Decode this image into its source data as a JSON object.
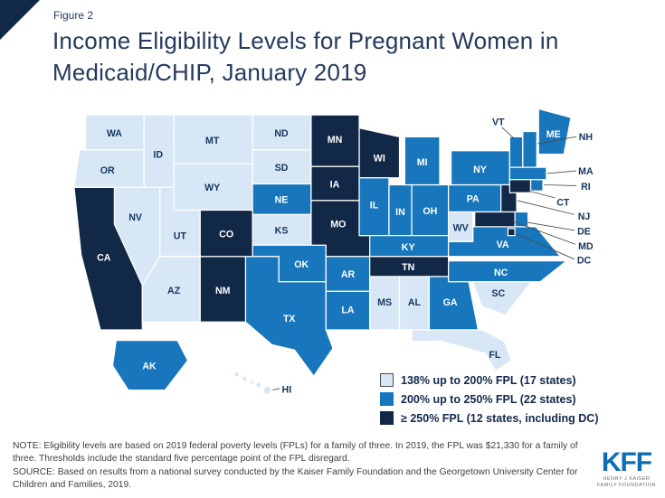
{
  "figure_label": "Figure 2",
  "title": {
    "line1": "Income Eligibility Levels for Pregnant Women in",
    "line2": "Medicaid/CHIP, January 2019"
  },
  "colors": {
    "light": "#d7e7f6",
    "medium": "#1876bc",
    "dark": "#122847",
    "label_dark": "#16355e",
    "label_light": "#ffffff",
    "leader_line": "#4a4a4a",
    "kff_blue": "#0f6db5"
  },
  "legend": {
    "items": [
      {
        "category": "light",
        "label": "138% up to 200% FPL (17 states)"
      },
      {
        "category": "medium",
        "label": "200% up to 250% FPL (22 states)"
      },
      {
        "category": "dark",
        "label": "≥ 250% FPL (12 states, including DC)"
      }
    ]
  },
  "map_data": {
    "type": "choropleth",
    "unit": "US states",
    "categories": {
      "light": {
        "label": "138% up to 200% FPL",
        "states": [
          "WA",
          "OR",
          "ID",
          "MT",
          "WY",
          "ND",
          "SD",
          "KS",
          "NV",
          "UT",
          "AZ",
          "MS",
          "AL",
          "SC",
          "FL",
          "WV",
          "HI"
        ]
      },
      "medium": {
        "label": "200% up to 250% FPL",
        "states": [
          "AK",
          "NE",
          "OK",
          "TX",
          "AR",
          "LA",
          "IL",
          "IN",
          "OH",
          "MI",
          "KY",
          "GA",
          "PA",
          "NY",
          "VA",
          "NC",
          "DE",
          "VT",
          "NH",
          "MA",
          "RI",
          "ME"
        ]
      },
      "dark": {
        "label": "≥ 250% FPL",
        "states": [
          "CA",
          "CO",
          "NM",
          "MN",
          "IA",
          "WI",
          "MO",
          "TN",
          "CT",
          "NJ",
          "MD",
          "DC"
        ]
      }
    }
  },
  "notes": {
    "note": "NOTE: Eligibility levels are based on 2019 federal poverty levels (FPLs) for a family of three. In 2019, the FPL was $21,330 for a family of three. Thresholds include the standard five percentage point of the FPL disregard.",
    "source": "SOURCE: Based on results from a national survey conducted by the Kaiser Family Foundation and the Georgetown University Center for Children and Families, 2019."
  },
  "logo": {
    "text": "KFF",
    "caption_line1": "HENRY J KAISER",
    "caption_line2": "FAMILY FOUNDATION"
  }
}
